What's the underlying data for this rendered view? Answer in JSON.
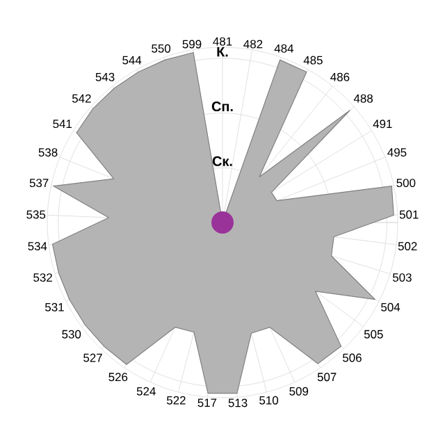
{
  "chart_data": {
    "type": "radar",
    "categories": [
      "481",
      "482",
      "484",
      "485",
      "486",
      "488",
      "491",
      "495",
      "500",
      "501",
      "502",
      "503",
      "504",
      "505",
      "506",
      "507",
      "509",
      "510",
      "513",
      "517",
      "522",
      "524",
      "526",
      "527",
      "530",
      "531",
      "532",
      "534",
      "535",
      "537",
      "538",
      "541",
      "542",
      "543",
      "544",
      "550",
      "599"
    ],
    "ylim": [
      0,
      3.2
    ],
    "yticks": [
      {
        "value": 1,
        "label": "Ск."
      },
      {
        "value": 2,
        "label": "Сп."
      },
      {
        "value": 3,
        "label": "К."
      }
    ],
    "grid": true,
    "series": [
      {
        "color": "#b4b4b4",
        "values": [
          0,
          0,
          3.15,
          3.15,
          1.07,
          3.1,
          1.05,
          1.07,
          3.16,
          3.13,
          2.05,
          2.08,
          3.12,
          2.11,
          3.13,
          3.11,
          2.1,
          2.09,
          3.13,
          3.13,
          2.07,
          2.1,
          3.13,
          3.13,
          3.13,
          3.13,
          3.13,
          3.13,
          2.08,
          3.16,
          2.14,
          3.13,
          3.15,
          3.15,
          3.15,
          3.15,
          3.15
        ]
      }
    ]
  }
}
